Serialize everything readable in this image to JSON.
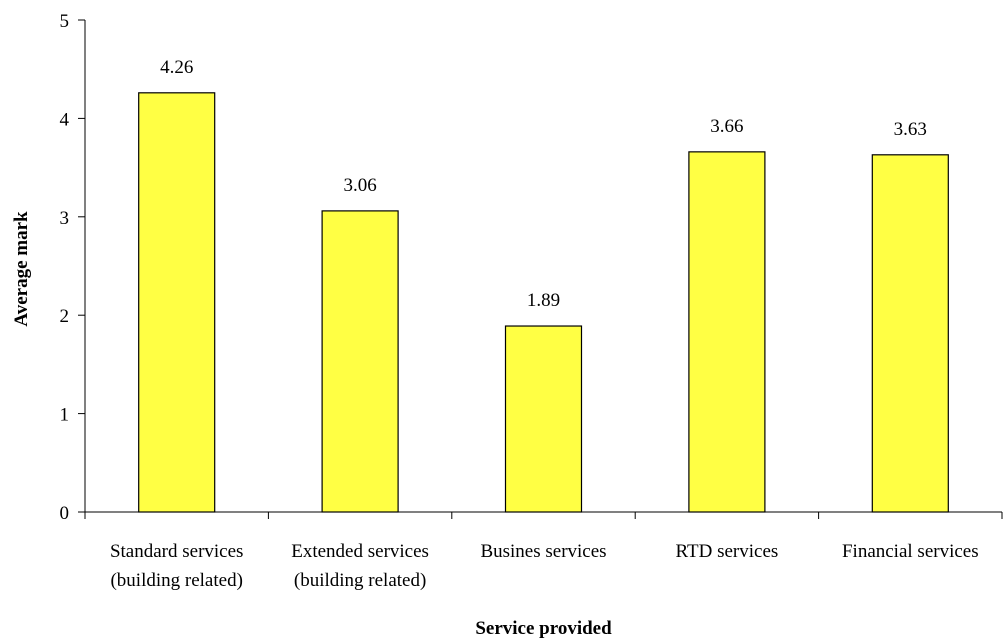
{
  "chart_data": {
    "type": "bar",
    "title": "",
    "xlabel": "Service provided",
    "ylabel": "Average mark",
    "ylim": [
      0,
      5
    ],
    "yticks": [
      0,
      1,
      2,
      3,
      4,
      5
    ],
    "grid": false,
    "legend": "none",
    "bar_color": "#FFFF44",
    "categories": [
      [
        "Standard services",
        "(building related)"
      ],
      [
        "Extended services",
        "(building related)"
      ],
      [
        "Busines services"
      ],
      [
        "RTD services"
      ],
      [
        "Financial services"
      ]
    ],
    "values": [
      4.26,
      3.06,
      1.89,
      3.66,
      3.63
    ],
    "data_labels": [
      "4.26",
      "3.06",
      "1.89",
      "3.66",
      "3.63"
    ]
  }
}
